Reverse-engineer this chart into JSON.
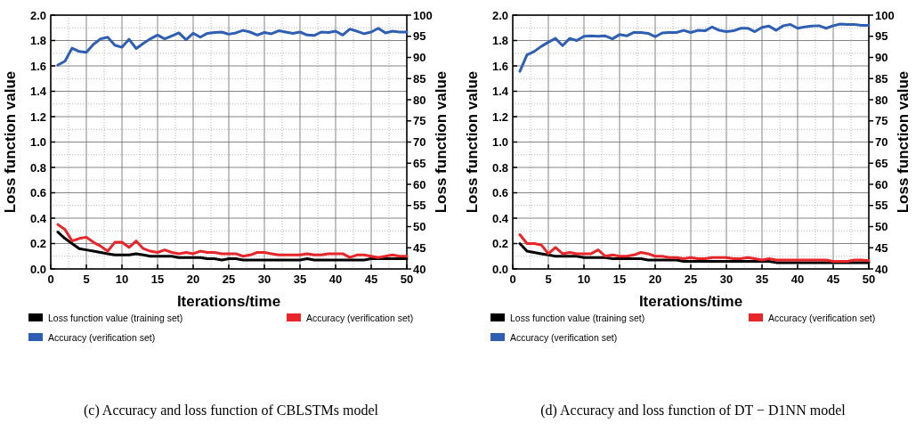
{
  "chart_data": [
    {
      "type": "line",
      "xlabel": "Iterations/time",
      "ylabel": "Loss function value",
      "y2label": "Loss function value",
      "annotations": [
        "(c) Accuracy and loss function of CBLSTMs model"
      ],
      "x": [
        1,
        2,
        3,
        4,
        5,
        6,
        7,
        8,
        9,
        10,
        11,
        12,
        13,
        14,
        15,
        16,
        17,
        18,
        19,
        20,
        21,
        22,
        23,
        24,
        25,
        26,
        27,
        28,
        29,
        30,
        31,
        32,
        33,
        34,
        35,
        36,
        37,
        38,
        39,
        40,
        41,
        42,
        43,
        44,
        45,
        46,
        47,
        48,
        49,
        50
      ],
      "xlim": [
        0,
        50
      ],
      "xticks": [
        0,
        5,
        10,
        15,
        20,
        25,
        30,
        35,
        40,
        45,
        50
      ],
      "ylim": [
        0,
        2
      ],
      "yticks": [
        {
          "value": 0,
          "label": "0.0"
        },
        0.2,
        0.4,
        0.6,
        0.8,
        {
          "value": 1,
          "label": "1.0"
        },
        1.2,
        1.4,
        1.6,
        1.8,
        {
          "value": 2,
          "label": "2.0"
        }
      ],
      "y2lim": [
        40,
        100
      ],
      "y2ticks": [
        40,
        45,
        50,
        55,
        60,
        65,
        70,
        75,
        80,
        85,
        90,
        95,
        100
      ],
      "grid": true,
      "legend": "bottom",
      "marker": "none",
      "line_style": "solid",
      "series": [
        {
          "name": "Loss function value (training set)",
          "color": "#000000",
          "values": [
            0.29,
            0.24,
            0.2,
            0.16,
            0.15,
            0.14,
            0.13,
            0.12,
            0.11,
            0.11,
            0.11,
            0.12,
            0.11,
            0.1,
            0.1,
            0.1,
            0.1,
            0.09,
            0.09,
            0.09,
            0.09,
            0.08,
            0.08,
            0.07,
            0.08,
            0.08,
            0.07,
            0.07,
            0.07,
            0.07,
            0.07,
            0.07,
            0.07,
            0.07,
            0.07,
            0.08,
            0.07,
            0.07,
            0.07,
            0.07,
            0.07,
            0.07,
            0.07,
            0.07,
            0.08,
            0.08,
            0.08,
            0.08,
            0.08,
            0.08
          ]
        },
        {
          "name": "Accuracy (verification set)",
          "color": "#e8262a",
          "values": [
            0.35,
            0.31,
            0.22,
            0.24,
            0.25,
            0.21,
            0.18,
            0.14,
            0.21,
            0.21,
            0.17,
            0.22,
            0.16,
            0.14,
            0.13,
            0.15,
            0.13,
            0.12,
            0.13,
            0.12,
            0.14,
            0.13,
            0.13,
            0.12,
            0.12,
            0.12,
            0.1,
            0.11,
            0.13,
            0.13,
            0.12,
            0.11,
            0.11,
            0.11,
            0.11,
            0.12,
            0.11,
            0.11,
            0.12,
            0.12,
            0.12,
            0.09,
            0.11,
            0.11,
            0.1,
            0.09,
            0.1,
            0.11,
            0.1,
            0.1
          ]
        },
        {
          "name": "Accuracy (verification set)",
          "color": "#2f5fb3",
          "axis": "y2",
          "values": [
            88.2,
            89.1,
            92.2,
            91.4,
            91.2,
            93.1,
            94.4,
            94.8,
            92.9,
            92.4,
            94.3,
            92.1,
            93.3,
            94.4,
            95.3,
            94.4,
            95.1,
            95.8,
            94.2,
            95.7,
            94.8,
            95.7,
            95.9,
            96.0,
            95.5,
            95.8,
            96.4,
            96.0,
            95.3,
            95.9,
            95.6,
            96.3,
            96.0,
            95.7,
            96.0,
            95.3,
            95.2,
            96.0,
            95.9,
            96.2,
            95.3,
            96.7,
            96.2,
            95.6,
            96.0,
            96.9,
            95.8,
            96.2,
            96.0,
            96.0
          ]
        }
      ]
    },
    {
      "type": "line",
      "xlabel": "Iterations/time",
      "ylabel": "Loss function value",
      "y2label": "Loss function value",
      "annotations": [
        "(d) Accuracy and loss function of DT − D1NN model"
      ],
      "x": [
        1,
        2,
        3,
        4,
        5,
        6,
        7,
        8,
        9,
        10,
        11,
        12,
        13,
        14,
        15,
        16,
        17,
        18,
        19,
        20,
        21,
        22,
        23,
        24,
        25,
        26,
        27,
        28,
        29,
        30,
        31,
        32,
        33,
        34,
        35,
        36,
        37,
        38,
        39,
        40,
        41,
        42,
        43,
        44,
        45,
        46,
        47,
        48,
        49,
        50
      ],
      "xlim": [
        0,
        50
      ],
      "xticks": [
        0,
        5,
        10,
        15,
        20,
        25,
        30,
        35,
        40,
        45,
        50
      ],
      "ylim": [
        0,
        2
      ],
      "yticks": [
        {
          "value": 0,
          "label": "0.0"
        },
        0.2,
        0.4,
        0.6,
        0.8,
        {
          "value": 1,
          "label": "1.0"
        },
        1.2,
        1.4,
        1.6,
        1.8,
        {
          "value": 2,
          "label": "2.0"
        }
      ],
      "y2lim": [
        40,
        100
      ],
      "y2ticks": [
        40,
        45,
        50,
        55,
        60,
        65,
        70,
        75,
        80,
        85,
        90,
        95,
        100
      ],
      "grid": true,
      "legend": "bottom",
      "marker": "none",
      "line_style": "solid",
      "series": [
        {
          "name": "Loss function value (training set)",
          "color": "#000000",
          "values": [
            0.2,
            0.14,
            0.13,
            0.12,
            0.11,
            0.1,
            0.1,
            0.1,
            0.1,
            0.09,
            0.09,
            0.09,
            0.09,
            0.08,
            0.08,
            0.08,
            0.08,
            0.08,
            0.07,
            0.07,
            0.07,
            0.07,
            0.07,
            0.06,
            0.06,
            0.06,
            0.06,
            0.06,
            0.06,
            0.06,
            0.06,
            0.06,
            0.06,
            0.06,
            0.06,
            0.06,
            0.05,
            0.05,
            0.05,
            0.05,
            0.05,
            0.05,
            0.05,
            0.05,
            0.05,
            0.05,
            0.05,
            0.05,
            0.05,
            0.05
          ]
        },
        {
          "name": "Accuracy (verification set)",
          "color": "#e8262a",
          "values": [
            0.27,
            0.2,
            0.2,
            0.19,
            0.12,
            0.17,
            0.12,
            0.13,
            0.12,
            0.12,
            0.12,
            0.15,
            0.1,
            0.11,
            0.1,
            0.1,
            0.11,
            0.13,
            0.12,
            0.1,
            0.1,
            0.09,
            0.09,
            0.08,
            0.09,
            0.08,
            0.08,
            0.09,
            0.09,
            0.09,
            0.08,
            0.08,
            0.09,
            0.08,
            0.07,
            0.08,
            0.07,
            0.07,
            0.07,
            0.07,
            0.07,
            0.07,
            0.07,
            0.07,
            0.06,
            0.06,
            0.06,
            0.07,
            0.07,
            0.065
          ]
        },
        {
          "name": "Accuracy (verification set)",
          "color": "#2f5fb3",
          "axis": "y2",
          "values": [
            86.7,
            90.6,
            91.4,
            92.6,
            93.6,
            94.5,
            92.8,
            94.5,
            94.0,
            95.0,
            95.1,
            95.0,
            95.1,
            94.4,
            95.4,
            95.1,
            95.9,
            95.9,
            95.7,
            94.9,
            95.8,
            95.9,
            95.9,
            96.4,
            95.9,
            96.4,
            96.3,
            97.2,
            96.4,
            96.1,
            96.3,
            96.9,
            96.9,
            96.1,
            97.1,
            97.4,
            96.4,
            97.5,
            97.8,
            96.9,
            97.2,
            97.4,
            97.5,
            96.9,
            97.5,
            97.9,
            97.8,
            97.8,
            97.6,
            97.6
          ]
        }
      ]
    }
  ]
}
